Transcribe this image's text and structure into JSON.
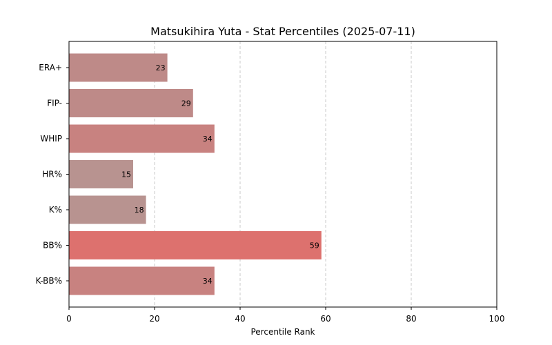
{
  "chart_data": {
    "type": "bar",
    "orientation": "horizontal",
    "title": "Matsukihira Yuta - Stat Percentiles (2025-07-11)",
    "xlabel": "Percentile Rank",
    "ylabel": "",
    "xlim": [
      0,
      100
    ],
    "xticks": [
      0,
      20,
      40,
      60,
      80,
      100
    ],
    "grid": "x-dashed",
    "categories": [
      "ERA+",
      "FIP-",
      "WHIP",
      "HR%",
      "K%",
      "BB%",
      "K-BB%"
    ],
    "values": [
      23,
      29,
      34,
      15,
      18,
      59,
      34
    ],
    "colors": [
      "#be8a88",
      "#be8a88",
      "#c88280",
      "#b89390",
      "#b89390",
      "#dd716e",
      "#c88280"
    ]
  }
}
